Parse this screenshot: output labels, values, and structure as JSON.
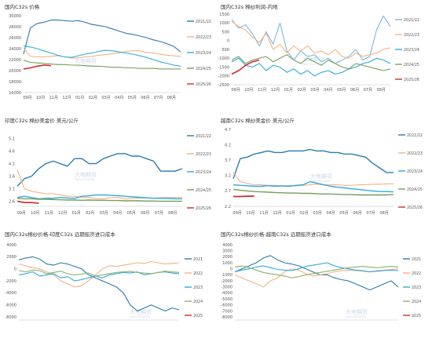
{
  "colors": {
    "s2122": "#2a7bb0",
    "s2223": "#f5b183",
    "s2324": "#2eaadf",
    "s2425": "#74a05a",
    "s2526": "#d42a2a",
    "s2021": "#2a7bb0",
    "s2022": "#f5b183",
    "s2023": "#2eaadf",
    "s2024": "#8fb06e",
    "s2025": "#d42a2a",
    "light2122": "#7ab8de"
  },
  "watermark": {
    "cn": "大地期货",
    "en": "DADI FUTURES"
  },
  "months": [
    "09月",
    "10月",
    "11月",
    "12月",
    "01月",
    "02月",
    "03月",
    "04月",
    "05月",
    "06月",
    "07月",
    "08月"
  ],
  "chart_data": [
    {
      "type": "line",
      "title": "国内C32s 价格",
      "ylim": [
        16000,
        30000
      ],
      "yticks": [
        "30000",
        "28000",
        "26000",
        "24000",
        "22000",
        "20000",
        "18000",
        "16000"
      ],
      "series": [
        {
          "name": "2021/22",
          "values": [
            23000,
            27800,
            28600,
            28800,
            29200,
            29200,
            29100,
            29000,
            29100,
            28800,
            28400,
            28200,
            28000,
            27600,
            27200,
            26800,
            26600,
            26300,
            26000,
            25600,
            25300,
            24900,
            24400,
            23400
          ]
        },
        {
          "name": "2022/23",
          "values": [
            24100,
            22600,
            22500,
            22500,
            22600,
            22700,
            22500,
            22300,
            22300,
            22500,
            22600,
            22800,
            22900,
            23100,
            23200,
            23500,
            23600,
            23600,
            23300,
            23200,
            23000,
            22800,
            22700,
            22600
          ]
        },
        {
          "name": "2023/24",
          "values": [
            24500,
            24300,
            24000,
            23600,
            23200,
            22800,
            22500,
            22400,
            22700,
            23000,
            23200,
            23500,
            23700,
            23600,
            23400,
            23200,
            23000,
            22700,
            22400,
            22000,
            21600,
            21300,
            21000,
            20800
          ]
        },
        {
          "name": "2024/25",
          "values": [
            21900,
            21500,
            21400,
            21300,
            21200,
            21100,
            21100,
            21000,
            21000,
            20900,
            20800,
            20800,
            20700,
            20600,
            20600,
            20500,
            20500,
            20400,
            20400,
            20400,
            20300,
            20300,
            20300,
            20300
          ]
        },
        {
          "name": "2025/26",
          "values": [
            20300,
            20500,
            20800,
            21000,
            20900,
            null,
            null,
            null,
            null,
            null,
            null,
            null,
            null,
            null,
            null,
            null,
            null,
            null,
            null,
            null,
            null,
            null,
            null,
            null
          ]
        }
      ]
    },
    {
      "type": "line",
      "title": "国内C32s 棉纱利润-内地",
      "ylim": [
        -2500,
        1500
      ],
      "yticks": [
        "1500",
        "1000",
        "500",
        "0",
        "-500",
        "-1000",
        "-1500",
        "-2000",
        "-2500"
      ],
      "series": [
        {
          "name": "2021/22",
          "values": [
            1200,
            700,
            900,
            400,
            -300,
            500,
            -200,
            1000,
            -600,
            -1100,
            -600,
            -900,
            -800,
            -1200,
            -1000,
            -1300,
            -1100,
            -900,
            -500,
            -1100,
            -900,
            600,
            1400,
            800
          ]
        },
        {
          "name": "2022/23",
          "values": [
            1100,
            800,
            600,
            200,
            -100,
            400,
            -500,
            -200,
            -700,
            -300,
            -600,
            -300,
            -700,
            -600,
            -800,
            -500,
            -900,
            -1000,
            -700,
            -900,
            -800,
            -700,
            -500,
            -400
          ]
        },
        {
          "name": "2023/24",
          "values": [
            -1200,
            -1000,
            -1400,
            -1500,
            -1300,
            -1700,
            -1400,
            -1500,
            -1800,
            -1600,
            -1900,
            -1700,
            -2000,
            -1800,
            -1700,
            -1900,
            -1800,
            -1600,
            -1500,
            -1300,
            -1200,
            -1000,
            -1100,
            -1300
          ]
        },
        {
          "name": "2024/25",
          "values": [
            -1100,
            -900,
            -1300,
            -1100,
            -1000,
            -900,
            -1200,
            -1000,
            -800,
            -1100,
            -1300,
            -1000,
            -1200,
            -1400,
            -1100,
            -1300,
            -1500,
            -1600,
            -1300,
            -1400,
            -1500,
            -1600,
            -1700,
            -1600
          ]
        },
        {
          "name": "2025/26",
          "values": [
            -1900,
            -1700,
            -1400,
            -1200,
            -1100,
            null,
            null,
            null,
            null,
            null,
            null,
            null,
            null,
            null,
            null,
            null,
            null,
            null,
            null,
            null,
            null,
            null,
            null,
            null
          ]
        }
      ]
    },
    {
      "type": "line",
      "title": "印度C32s 棉纱美金价 美元/公斤",
      "ylim": [
        2.4,
        5.4
      ],
      "yticks": [
        "5.1",
        "4.6",
        "4.1",
        "3.6",
        "3.1",
        "2.6"
      ],
      "series": [
        {
          "name": "2021/22",
          "values": [
            3.2,
            3.5,
            3.6,
            3.9,
            4.1,
            4.2,
            4.1,
            4.0,
            4.3,
            4.3,
            4.1,
            4.1,
            4.3,
            4.4,
            4.5,
            4.5,
            4.4,
            4.4,
            4.3,
            4.2,
            3.8,
            3.8,
            3.8,
            3.9
          ]
        },
        {
          "name": "2022/23",
          "values": [
            3.85,
            3.1,
            3.0,
            2.95,
            2.9,
            2.9,
            2.85,
            2.8,
            2.8,
            2.75,
            2.75,
            2.7,
            2.7,
            2.75,
            2.75,
            2.7,
            2.72,
            2.73,
            2.73,
            2.72,
            2.75,
            2.75,
            2.75,
            2.76
          ]
        },
        {
          "name": "2023/24",
          "values": [
            2.75,
            2.8,
            2.75,
            2.7,
            2.72,
            2.72,
            2.75,
            2.73,
            2.72,
            2.8,
            2.82,
            2.85,
            2.85,
            2.84,
            2.82,
            2.8,
            2.78,
            2.76,
            2.74,
            2.72,
            2.72,
            2.71,
            2.7,
            2.7
          ]
        },
        {
          "name": "2024/25",
          "values": [
            2.72,
            2.7,
            2.7,
            2.68,
            2.68,
            2.67,
            2.66,
            2.65,
            2.65,
            2.64,
            2.65,
            2.64,
            2.64,
            2.63,
            2.63,
            2.62,
            2.62,
            2.62,
            2.61,
            2.61,
            2.6,
            2.6,
            2.6,
            2.6
          ]
        },
        {
          "name": "2025/26",
          "values": [
            2.6,
            2.55,
            2.55,
            2.52,
            null,
            null,
            null,
            null,
            null,
            null,
            null,
            null,
            null,
            null,
            null,
            null,
            null,
            null,
            null,
            null,
            null,
            null,
            null,
            null
          ]
        }
      ]
    },
    {
      "type": "line",
      "title": "越南C32s 棉纱美金价 美元/公斤",
      "ylim": [
        2.2,
        4.7
      ],
      "yticks": [
        "4.7",
        "4.2",
        "3.7",
        "3.2",
        "2.7",
        "2.2"
      ],
      "series": [
        {
          "name": "2021/22",
          "values": [
            3.1,
            3.75,
            3.8,
            3.9,
            3.95,
            4.0,
            3.95,
            3.95,
            4.0,
            4.0,
            4.0,
            4.05,
            4.0,
            4.0,
            3.95,
            3.95,
            3.9,
            3.9,
            3.85,
            3.8,
            3.6,
            3.45,
            3.3,
            3.3
          ]
        },
        {
          "name": "2022/23",
          "values": [
            3.3,
            3.0,
            2.95,
            2.9,
            2.9,
            2.88,
            2.88,
            2.87,
            2.87,
            2.86,
            2.88,
            2.9,
            2.92,
            2.9,
            2.9,
            2.9,
            2.88,
            2.88,
            2.9,
            2.9,
            2.92,
            2.92,
            2.93,
            2.93
          ]
        },
        {
          "name": "2023/24",
          "values": [
            2.9,
            2.88,
            2.87,
            2.85,
            2.85,
            2.87,
            2.85,
            2.86,
            2.85,
            2.88,
            2.9,
            3.0,
            2.95,
            2.9,
            2.85,
            2.82,
            2.8,
            2.77,
            2.75,
            2.72,
            2.7,
            2.68,
            2.68,
            2.67
          ]
        },
        {
          "name": "2024/25",
          "values": [
            2.75,
            2.72,
            2.7,
            2.68,
            2.67,
            2.66,
            2.65,
            2.64,
            2.63,
            2.63,
            2.62,
            2.62,
            2.61,
            2.6,
            2.6,
            2.59,
            2.58,
            2.58,
            2.57,
            2.57,
            2.57,
            2.57,
            2.57,
            2.58
          ]
        },
        {
          "name": "2025/26",
          "values": [
            2.52,
            2.52,
            2.53,
            2.53,
            null,
            null,
            null,
            null,
            null,
            null,
            null,
            null,
            null,
            null,
            null,
            null,
            null,
            null,
            null,
            null,
            null,
            null,
            null,
            null
          ]
        }
      ]
    },
    {
      "type": "line",
      "title": "国内C32s棉纱价格-印度C32s 远期船货进口成本",
      "ylim": [
        -8500,
        4000
      ],
      "yticks": [
        "4000",
        "2000",
        "0",
        "-2000",
        "-4000",
        "-6000",
        "-8000"
      ],
      "series": [
        {
          "name": "2021",
          "values": [
            1500,
            1800,
            2000,
            1600,
            800,
            600,
            1000,
            800,
            400,
            0,
            -1000,
            -1500,
            -2000,
            -2500,
            -3000,
            -4000,
            -6000,
            -7000,
            -6500,
            -6000,
            -6500,
            -7000,
            -6500,
            -6800
          ]
        },
        {
          "name": "2022",
          "values": [
            800,
            500,
            200,
            0,
            -500,
            -1000,
            -2000,
            -2500,
            -3000,
            -2800,
            -2000,
            -1000,
            0,
            500,
            400,
            600,
            800,
            1000,
            900,
            1200,
            1000,
            800,
            900,
            1000
          ]
        },
        {
          "name": "2023",
          "values": [
            -1000,
            -800,
            -500,
            -1200,
            -1000,
            -800,
            -1500,
            -1300,
            -2000,
            -1800,
            -1500,
            -1200,
            -1500,
            -1000,
            -800,
            -600,
            -700,
            -500,
            -1000,
            -800,
            -600,
            -500,
            -700,
            -800
          ]
        },
        {
          "name": "2024",
          "values": [
            -300,
            -500,
            -200,
            -300,
            -800,
            -600,
            -400,
            -800,
            -1000,
            -900,
            -700,
            -1200,
            -1000,
            -800,
            -600,
            -500,
            -400,
            -600,
            -700,
            -800,
            -600,
            -400,
            -500,
            -600
          ]
        },
        {
          "name": "2025",
          "values": [
            null,
            null,
            null,
            null,
            null,
            null,
            null,
            null,
            null,
            null,
            null,
            null,
            null,
            null,
            null,
            null,
            null,
            null,
            null,
            null,
            null,
            null,
            null,
            null
          ]
        }
      ]
    },
    {
      "type": "line",
      "title": "国内C32s棉纱价格-越南C32s 远期船货进口成本",
      "ylim": [
        -8500,
        4000
      ],
      "yticks": [
        "4000",
        "3000",
        "2000",
        "1000",
        "0",
        "-1000",
        "-2000",
        "-3000",
        "-4000",
        "-5000",
        "-6000",
        "-7000",
        "-8000"
      ],
      "series": [
        {
          "name": "2021",
          "values": [
            -500,
            0,
            500,
            1000,
            1800,
            2200,
            1500,
            1000,
            800,
            500,
            0,
            -500,
            -1000,
            -1000,
            -1500,
            -1800,
            -2000,
            -2500,
            -3000,
            -3500,
            -3000,
            -2500,
            -2000,
            -3000
          ]
        },
        {
          "name": "2022",
          "values": [
            -1000,
            -1500,
            -2000,
            -2500,
            -3000,
            -2000,
            -1500,
            -500,
            0,
            -200,
            -800,
            -1200,
            -1000,
            -800,
            -500,
            -300,
            -200,
            -300,
            -400,
            -500,
            -300,
            -200,
            -100,
            0
          ]
        },
        {
          "name": "2023",
          "values": [
            -500,
            -200,
            0,
            300,
            500,
            200,
            -100,
            -200,
            -300,
            0,
            400,
            600,
            800,
            1000,
            500,
            200,
            0,
            -200,
            -300,
            -500,
            -400,
            -300,
            -200,
            -300
          ]
        },
        {
          "name": "2024",
          "values": [
            300,
            500,
            200,
            -200,
            -600,
            -800,
            -1000,
            -1200,
            -1500,
            -1300,
            -1000,
            -800,
            -600,
            -400,
            -200,
            0,
            200,
            300,
            400,
            300,
            200,
            300,
            400,
            300
          ]
        },
        {
          "name": "2025",
          "values": [
            null,
            null,
            null,
            null,
            null,
            null,
            null,
            null,
            null,
            null,
            null,
            null,
            null,
            null,
            null,
            null,
            null,
            null,
            null,
            null,
            null,
            null,
            null,
            null
          ]
        }
      ]
    }
  ]
}
